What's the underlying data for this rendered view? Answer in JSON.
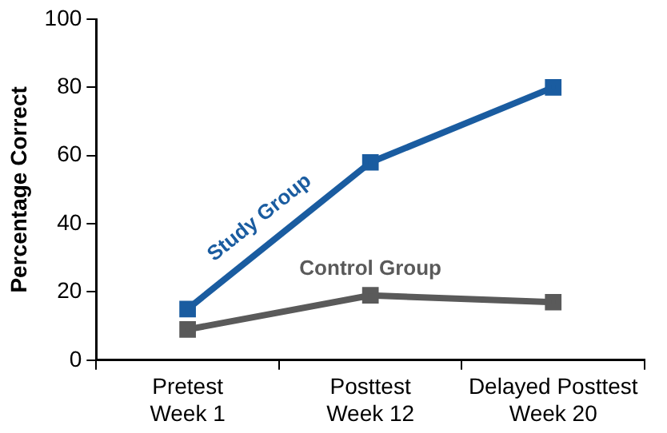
{
  "chart_data": {
    "type": "line",
    "ylabel": "Percentage Correct",
    "categories": [
      "Pretest\nWeek 1",
      "Posttest\nWeek 12",
      "Delayed Posttest\nWeek 20"
    ],
    "series": [
      {
        "name": "Study Group",
        "color": "#1a5ca0",
        "values": [
          15,
          58,
          80
        ]
      },
      {
        "name": "Control Group",
        "color": "#5a5a5a",
        "values": [
          9,
          19,
          17
        ]
      }
    ],
    "ylim": [
      0,
      100
    ],
    "yticks": [
      0,
      20,
      40,
      60,
      80,
      100
    ],
    "grid": false,
    "legend": false,
    "marker": "square",
    "line_style": "solid"
  }
}
